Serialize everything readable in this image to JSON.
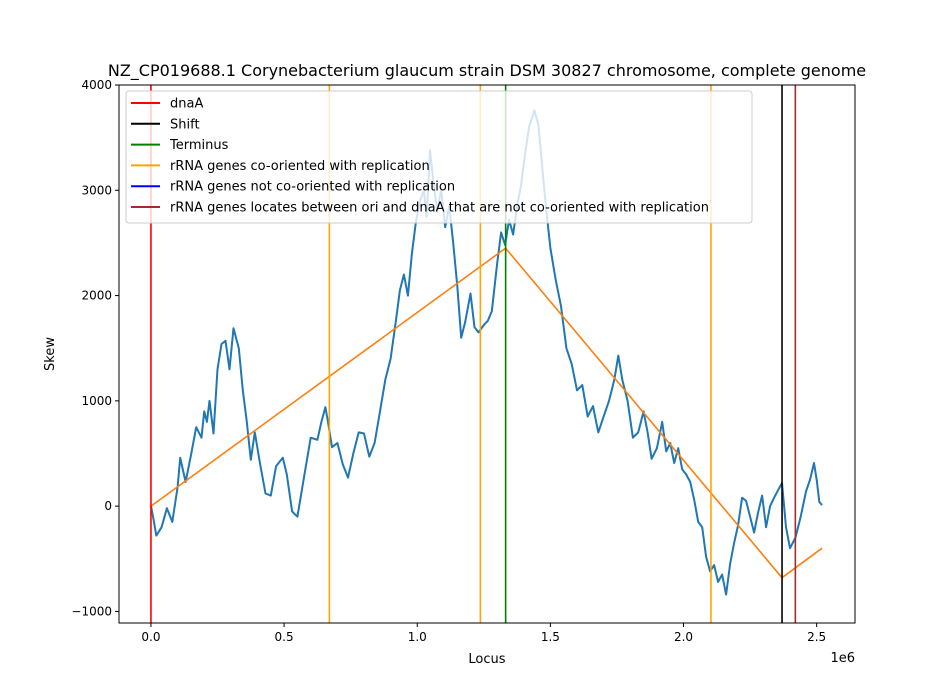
{
  "chart_data": {
    "type": "line",
    "title": "NZ_CP019688.1 Corynebacterium glaucum strain DSM 30827 chromosome, complete genome",
    "xlabel": "Locus",
    "ylabel": "Skew",
    "x_offset_label": "1e6",
    "xlim": [
      -120000,
      2644000
    ],
    "ylim": [
      -1110,
      4000
    ],
    "x_ticks": [
      0,
      500000,
      1000000,
      1500000,
      2000000,
      2500000
    ],
    "x_tick_labels": [
      "0.0",
      "0.5",
      "1.0",
      "1.5",
      "2.0",
      "2.5"
    ],
    "y_ticks": [
      -1000,
      0,
      1000,
      2000,
      3000,
      4000
    ],
    "y_tick_labels": [
      "−1000",
      "0",
      "1000",
      "2000",
      "3000",
      "4000"
    ],
    "legend_position": "top-left",
    "legend": [
      {
        "label": "dnaA",
        "color": "#ff0000"
      },
      {
        "label": "Shift",
        "color": "#000000"
      },
      {
        "label": "Terminus",
        "color": "#008000"
      },
      {
        "label": "rRNA genes co-oriented with replication",
        "color": "#ffa500"
      },
      {
        "label": "rRNA genes not co-oriented with replication",
        "color": "#0000ff"
      },
      {
        "label": "rRNA genes locates between ori and dnaA that are not co-oriented with replication",
        "color": "#a52a2a"
      }
    ],
    "vertical_lines": [
      {
        "name": "dnaA",
        "x": 0,
        "color": "#ff0000"
      },
      {
        "name": "rRNA genes co-oriented with replication",
        "x": 670000,
        "color": "#ffa500"
      },
      {
        "name": "rRNA genes co-oriented with replication",
        "x": 1237000,
        "color": "#ffa500"
      },
      {
        "name": "Terminus",
        "x": 1332000,
        "color": "#008000"
      },
      {
        "name": "rRNA genes co-oriented with replication",
        "x": 2103000,
        "color": "#ffa500"
      },
      {
        "name": "Shift",
        "x": 2370000,
        "color": "#000000"
      },
      {
        "name": "rRNA genes locates between ori and dnaA that are not co-oriented with replication",
        "x": 2420000,
        "color": "#a52a2a"
      }
    ],
    "series": [
      {
        "color": "#1f77b4",
        "points": [
          [
            0,
            0
          ],
          [
            10000,
            -130
          ],
          [
            20000,
            -280
          ],
          [
            40000,
            -200
          ],
          [
            60000,
            -20
          ],
          [
            80000,
            -150
          ],
          [
            100000,
            180
          ],
          [
            110000,
            460
          ],
          [
            130000,
            230
          ],
          [
            150000,
            480
          ],
          [
            170000,
            750
          ],
          [
            190000,
            650
          ],
          [
            200000,
            900
          ],
          [
            210000,
            800
          ],
          [
            220000,
            1000
          ],
          [
            235000,
            690
          ],
          [
            250000,
            1300
          ],
          [
            265000,
            1540
          ],
          [
            280000,
            1570
          ],
          [
            295000,
            1300
          ],
          [
            310000,
            1690
          ],
          [
            330000,
            1500
          ],
          [
            345000,
            1100
          ],
          [
            360000,
            800
          ],
          [
            375000,
            440
          ],
          [
            390000,
            700
          ],
          [
            410000,
            400
          ],
          [
            430000,
            120
          ],
          [
            450000,
            100
          ],
          [
            470000,
            380
          ],
          [
            495000,
            460
          ],
          [
            510000,
            300
          ],
          [
            530000,
            -50
          ],
          [
            550000,
            -100
          ],
          [
            575000,
            280
          ],
          [
            600000,
            650
          ],
          [
            625000,
            630
          ],
          [
            640000,
            800
          ],
          [
            655000,
            940
          ],
          [
            665000,
            800
          ],
          [
            680000,
            560
          ],
          [
            700000,
            600
          ],
          [
            720000,
            400
          ],
          [
            740000,
            270
          ],
          [
            760000,
            500
          ],
          [
            780000,
            700
          ],
          [
            800000,
            690
          ],
          [
            820000,
            470
          ],
          [
            840000,
            600
          ],
          [
            860000,
            900
          ],
          [
            880000,
            1200
          ],
          [
            900000,
            1400
          ],
          [
            920000,
            1760
          ],
          [
            935000,
            2050
          ],
          [
            950000,
            2200
          ],
          [
            965000,
            2000
          ],
          [
            980000,
            2400
          ],
          [
            995000,
            2700
          ],
          [
            1010000,
            2900
          ],
          [
            1025000,
            3000
          ],
          [
            1035000,
            2750
          ],
          [
            1048000,
            3380
          ],
          [
            1060000,
            3100
          ],
          [
            1075000,
            2800
          ],
          [
            1090000,
            3000
          ],
          [
            1105000,
            2650
          ],
          [
            1120000,
            2850
          ],
          [
            1135000,
            2500
          ],
          [
            1150000,
            2100
          ],
          [
            1165000,
            1600
          ],
          [
            1180000,
            1750
          ],
          [
            1200000,
            2020
          ],
          [
            1215000,
            1700
          ],
          [
            1230000,
            1650
          ],
          [
            1250000,
            1720
          ],
          [
            1265000,
            1760
          ],
          [
            1280000,
            1850
          ],
          [
            1300000,
            2300
          ],
          [
            1315000,
            2600
          ],
          [
            1330000,
            2480
          ],
          [
            1345000,
            2720
          ],
          [
            1360000,
            2580
          ],
          [
            1375000,
            2850
          ],
          [
            1390000,
            3050
          ],
          [
            1405000,
            3350
          ],
          [
            1420000,
            3600
          ],
          [
            1440000,
            3760
          ],
          [
            1455000,
            3620
          ],
          [
            1470000,
            3200
          ],
          [
            1485000,
            2800
          ],
          [
            1500000,
            2450
          ],
          [
            1520000,
            2150
          ],
          [
            1540000,
            1900
          ],
          [
            1560000,
            1500
          ],
          [
            1580000,
            1350
          ],
          [
            1600000,
            1100
          ],
          [
            1620000,
            1150
          ],
          [
            1640000,
            850
          ],
          [
            1660000,
            950
          ],
          [
            1680000,
            700
          ],
          [
            1700000,
            850
          ],
          [
            1720000,
            1000
          ],
          [
            1740000,
            1200
          ],
          [
            1755000,
            1430
          ],
          [
            1770000,
            1200
          ],
          [
            1790000,
            1000
          ],
          [
            1810000,
            650
          ],
          [
            1830000,
            700
          ],
          [
            1850000,
            900
          ],
          [
            1865000,
            700
          ],
          [
            1880000,
            450
          ],
          [
            1900000,
            550
          ],
          [
            1920000,
            800
          ],
          [
            1935000,
            520
          ],
          [
            1950000,
            600
          ],
          [
            1965000,
            410
          ],
          [
            1980000,
            550
          ],
          [
            1995000,
            350
          ],
          [
            2010000,
            300
          ],
          [
            2025000,
            230
          ],
          [
            2040000,
            60
          ],
          [
            2055000,
            -150
          ],
          [
            2070000,
            -200
          ],
          [
            2085000,
            -480
          ],
          [
            2100000,
            -620
          ],
          [
            2115000,
            -560
          ],
          [
            2130000,
            -720
          ],
          [
            2145000,
            -650
          ],
          [
            2160000,
            -840
          ],
          [
            2175000,
            -550
          ],
          [
            2190000,
            -350
          ],
          [
            2205000,
            -180
          ],
          [
            2220000,
            80
          ],
          [
            2235000,
            50
          ],
          [
            2250000,
            -100
          ],
          [
            2265000,
            -250
          ],
          [
            2280000,
            -60
          ],
          [
            2295000,
            100
          ],
          [
            2310000,
            -200
          ],
          [
            2325000,
            0
          ],
          [
            2340000,
            80
          ],
          [
            2355000,
            150
          ],
          [
            2370000,
            220
          ],
          [
            2385000,
            -200
          ],
          [
            2400000,
            -400
          ],
          [
            2420000,
            -300
          ],
          [
            2440000,
            -100
          ],
          [
            2460000,
            140
          ],
          [
            2475000,
            250
          ],
          [
            2490000,
            410
          ],
          [
            2500000,
            250
          ],
          [
            2510000,
            40
          ],
          [
            2520000,
            10
          ]
        ]
      },
      {
        "color": "#ff7f0e",
        "points": [
          [
            0,
            0
          ],
          [
            1332000,
            2450
          ],
          [
            2370000,
            -680
          ],
          [
            2520000,
            -400
          ]
        ]
      }
    ]
  }
}
